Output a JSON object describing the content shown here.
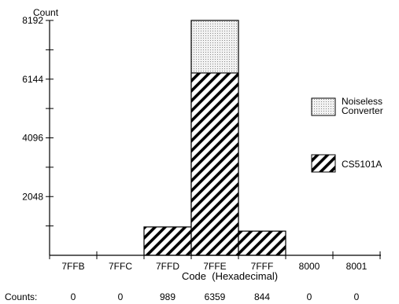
{
  "chart_data": {
    "type": "bar",
    "ylabel": "Count",
    "xlabel": "Code  (Hexadecimal)",
    "categories": [
      "7FFB",
      "7FFC",
      "7FFD",
      "7FFE",
      "7FFF",
      "8000",
      "8001"
    ],
    "ylim": [
      0,
      8192
    ],
    "yticks": [
      2048,
      4096,
      6144,
      8192
    ],
    "series": [
      {
        "name": "CS5101A",
        "values": [
          0,
          0,
          989,
          6359,
          844,
          0,
          0
        ],
        "pattern": "diagonal-hatch"
      },
      {
        "name": "Noiseless Converter",
        "values": [
          0,
          0,
          0,
          8192,
          0,
          0,
          0
        ],
        "pattern": "stipple"
      }
    ],
    "legend": [
      {
        "lines": [
          "Noiseless",
          "Converter"
        ],
        "pattern": "stipple"
      },
      {
        "lines": [
          "CS5101A"
        ],
        "pattern": "diagonal-hatch"
      }
    ],
    "legend_position": "right",
    "counts_label": "Counts:",
    "counts": [
      "0",
      "0",
      "989",
      "6359",
      "844",
      "0",
      "0"
    ]
  }
}
